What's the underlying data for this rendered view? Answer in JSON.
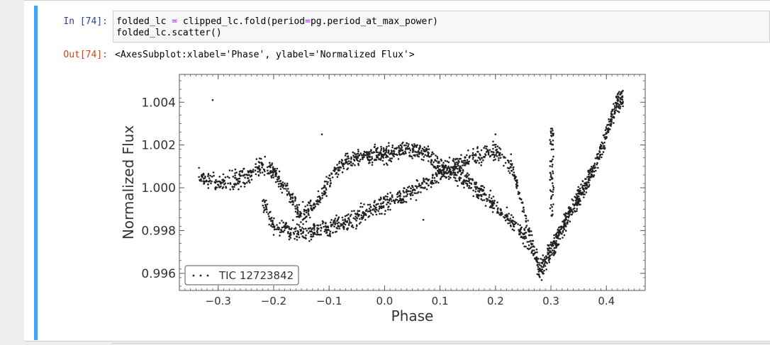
{
  "cell": {
    "in_prompt": "In [74]:",
    "code_lines": [
      {
        "a": "folded_lc ",
        "op": "=",
        "b": " clipped_lc.fold(period",
        "op2": "=",
        "c": "pg.period_at_max_power)"
      },
      {
        "a": "folded_lc.scatter()",
        "op": "",
        "b": "",
        "op2": "",
        "c": ""
      }
    ],
    "out_prompt": "Out[74]:",
    "output_text": "<AxesSubplot:xlabel='Phase', ylabel='Normalized Flux'>"
  },
  "chart_data": {
    "type": "scatter",
    "xlabel": "Phase",
    "ylabel": "Normalized Flux",
    "xlim": [
      -0.37,
      0.47
    ],
    "ylim": [
      0.9952,
      1.0053
    ],
    "xticks": [
      -0.3,
      -0.2,
      -0.1,
      0.0,
      0.1,
      0.2,
      0.3,
      0.4
    ],
    "xtick_labels": [
      "−0.3",
      "−0.2",
      "−0.1",
      "0.0",
      "0.1",
      "0.2",
      "0.3",
      "0.4"
    ],
    "yticks": [
      0.996,
      0.998,
      1.0,
      1.002,
      1.004
    ],
    "ytick_labels": [
      "0.996",
      "0.998",
      "1.000",
      "1.002",
      "1.004"
    ],
    "legend": {
      "label": "TIC 12723842",
      "placement": "lower-left"
    },
    "marker_color": "#222222",
    "phase_range": [
      -0.335,
      0.43
    ],
    "branch_a": {
      "x": [
        -0.335,
        -0.3,
        -0.25,
        -0.22,
        -0.2,
        -0.17,
        -0.15,
        -0.12,
        -0.1,
        -0.08,
        -0.05,
        0.0,
        0.05,
        0.08,
        0.1,
        0.15,
        0.2,
        0.25,
        0.28,
        0.3,
        0.32,
        0.35,
        0.38,
        0.4,
        0.42,
        0.43
      ],
      "y": [
        1.0005,
        1.0002,
        1.0005,
        1.0011,
        1.0008,
        0.9996,
        0.9987,
        0.9994,
        1.0003,
        1.0011,
        1.0014,
        1.0016,
        1.0018,
        1.0015,
        1.001,
        1.0003,
        0.9992,
        0.9978,
        0.9965,
        0.9972,
        0.9982,
        0.9996,
        1.001,
        1.0025,
        1.004,
        1.0042
      ]
    },
    "branch_b": {
      "x": [
        -0.22,
        -0.2,
        -0.15,
        -0.1,
        -0.05,
        0.0,
        0.05,
        0.08,
        0.1,
        0.15,
        0.2,
        0.23,
        0.25,
        0.27,
        0.28,
        0.3,
        0.32,
        0.35,
        0.38,
        0.4,
        0.42,
        0.43
      ],
      "y": [
        0.9993,
        0.9982,
        0.9979,
        0.9981,
        0.9986,
        0.9993,
        0.9998,
        1.0002,
        1.0007,
        1.0013,
        1.0017,
        1.001,
        0.999,
        0.997,
        0.996,
        0.9968,
        0.998,
        0.9995,
        1.001,
        1.0025,
        1.004,
        1.0042
      ]
    },
    "spike": {
      "x": [
        0.298,
        0.305
      ],
      "y": [
        0.9985,
        1.003
      ]
    },
    "outliers": {
      "x": [
        -0.31,
        -0.2,
        -0.113,
        0.07,
        0.2
      ],
      "y": [
        1.0041,
        0.9978,
        1.0025,
        0.9985,
        1.0025
      ]
    }
  }
}
